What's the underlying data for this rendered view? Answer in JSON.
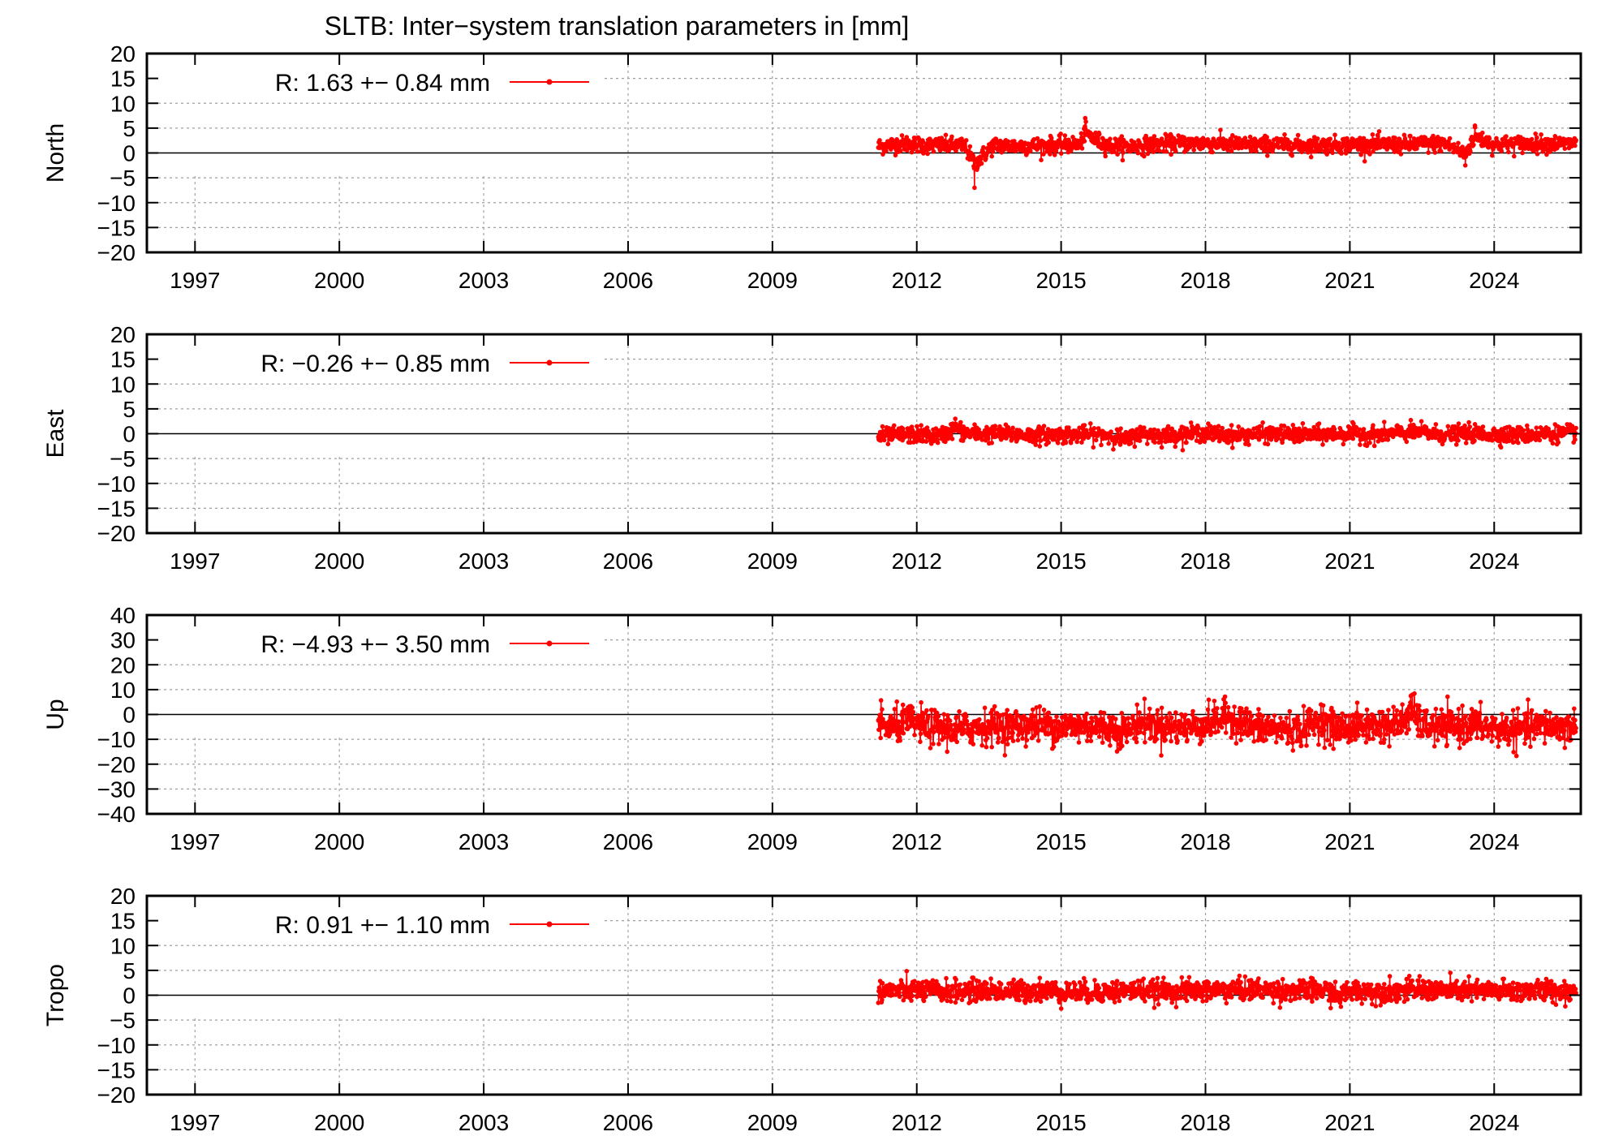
{
  "title": "SLTB: Inter−system translation parameters in [mm]",
  "colors": {
    "series": "#ff0000",
    "axis": "#000000",
    "grid": "#a0a0a0"
  },
  "chart_data": [
    {
      "type": "scatter",
      "ylabel": "North",
      "ylim": [
        -20,
        20
      ],
      "yticks": [
        "20",
        "15",
        "10",
        "5",
        "0",
        "−5",
        "−10",
        "−15",
        "−20"
      ],
      "ytick_values": [
        20,
        15,
        10,
        5,
        0,
        -5,
        -10,
        -15,
        -20
      ],
      "xlim": [
        1996,
        2025.8
      ],
      "xticks": [
        "1997",
        "2000",
        "2003",
        "2006",
        "2009",
        "2012",
        "2015",
        "2018",
        "2021",
        "2024"
      ],
      "xtick_values": [
        1997,
        2000,
        2003,
        2006,
        2009,
        2012,
        2015,
        2018,
        2021,
        2024
      ],
      "legend": {
        "label": "R:   1.63 +− 0.84 mm",
        "position": "top-left"
      },
      "series": [
        {
          "name": "R",
          "x_start": 2011.2,
          "x_end": 2025.7,
          "mean": 1.63,
          "sigma": 0.84,
          "x": [
            2011.2,
            2011.5,
            2011.8,
            2012.2,
            2012.6,
            2013.0,
            2013.2,
            2013.6,
            2014.0,
            2014.5,
            2015.0,
            2015.4,
            2015.5,
            2015.7,
            2016.0,
            2016.5,
            2017.0,
            2017.5,
            2018.0,
            2018.5,
            2019.0,
            2019.5,
            2020.0,
            2020.5,
            2021.0,
            2021.5,
            2022.0,
            2022.5,
            2023.0,
            2023.4,
            2023.6,
            2024.0,
            2024.5,
            2025.0,
            2025.5,
            2025.7
          ],
          "y": [
            1.0,
            1.8,
            2.2,
            1.5,
            1.4,
            1.2,
            -7.0,
            1.6,
            1.1,
            1.3,
            1.5,
            2.0,
            7.0,
            4.0,
            1.2,
            1.0,
            2.0,
            2.2,
            2.4,
            2.0,
            1.6,
            1.8,
            1.4,
            1.6,
            1.7,
            1.8,
            1.6,
            2.0,
            2.2,
            -2.5,
            5.5,
            1.8,
            2.0,
            2.2,
            2.0,
            2.4
          ]
        }
      ]
    },
    {
      "type": "scatter",
      "ylabel": "East",
      "ylim": [
        -20,
        20
      ],
      "yticks": [
        "20",
        "15",
        "10",
        "5",
        "0",
        "−5",
        "−10",
        "−15",
        "−20"
      ],
      "ytick_values": [
        20,
        15,
        10,
        5,
        0,
        -5,
        -10,
        -15,
        -20
      ],
      "xlim": [
        1996,
        2025.8
      ],
      "xticks": [
        "1997",
        "2000",
        "2003",
        "2006",
        "2009",
        "2012",
        "2015",
        "2018",
        "2021",
        "2024"
      ],
      "xtick_values": [
        1997,
        2000,
        2003,
        2006,
        2009,
        2012,
        2015,
        2018,
        2021,
        2024
      ],
      "legend": {
        "label": "R:  −0.26 +− 0.85 mm",
        "position": "top-left"
      },
      "series": [
        {
          "name": "R",
          "x_start": 2011.2,
          "x_end": 2025.7,
          "mean": -0.26,
          "sigma": 0.85,
          "x": [
            2011.2,
            2011.5,
            2012.0,
            2012.5,
            2012.8,
            2013.0,
            2013.5,
            2014.0,
            2014.5,
            2015.0,
            2015.5,
            2016.0,
            2016.4,
            2016.6,
            2017.0,
            2017.5,
            2018.0,
            2018.5,
            2019.0,
            2019.5,
            2020.0,
            2020.5,
            2021.0,
            2021.5,
            2022.0,
            2022.5,
            2023.0,
            2023.5,
            2024.0,
            2024.5,
            2025.0,
            2025.5,
            2025.7
          ],
          "y": [
            -1.0,
            -0.5,
            0.0,
            -0.8,
            3.0,
            0.5,
            0.2,
            0.0,
            -0.4,
            -0.2,
            0.0,
            -0.3,
            -2.5,
            0.5,
            -0.6,
            0.0,
            0.8,
            -0.5,
            0.0,
            0.2,
            -0.2,
            0.0,
            0.4,
            -0.3,
            0.6,
            1.0,
            -0.3,
            0.5,
            0.0,
            -0.3,
            0.3,
            0.5,
            1.0
          ]
        }
      ]
    },
    {
      "type": "scatter",
      "ylabel": "Up",
      "ylim": [
        -40,
        40
      ],
      "yticks": [
        "40",
        "30",
        "20",
        "10",
        "0",
        "−10",
        "−20",
        "−30",
        "−40"
      ],
      "ytick_values": [
        40,
        30,
        20,
        10,
        0,
        -10,
        -20,
        -30,
        -40
      ],
      "xlim": [
        1996,
        2025.8
      ],
      "xticks": [
        "1997",
        "2000",
        "2003",
        "2006",
        "2009",
        "2012",
        "2015",
        "2018",
        "2021",
        "2024"
      ],
      "xtick_values": [
        1997,
        2000,
        2003,
        2006,
        2009,
        2012,
        2015,
        2018,
        2021,
        2024
      ],
      "legend": {
        "label": "R:  −4.93 +− 3.50 mm",
        "position": "top-left"
      },
      "series": [
        {
          "name": "R",
          "x_start": 2011.2,
          "x_end": 2025.7,
          "mean": -4.93,
          "sigma": 3.5,
          "x": [
            2011.2,
            2011.5,
            2011.8,
            2012.2,
            2012.8,
            2013.5,
            2014.0,
            2014.5,
            2015.0,
            2015.5,
            2016.0,
            2016.4,
            2016.6,
            2017.0,
            2017.5,
            2018.0,
            2018.5,
            2019.0,
            2019.5,
            2020.0,
            2020.4,
            2020.7,
            2021.0,
            2021.5,
            2022.0,
            2022.3,
            2022.5,
            2023.0,
            2023.5,
            2024.0,
            2024.5,
            2025.0,
            2025.5,
            2025.7
          ],
          "y": [
            -3.0,
            -6.0,
            0.0,
            -5.0,
            -8.0,
            -4.0,
            -5.0,
            -3.0,
            -5.0,
            -4.0,
            -6.0,
            -9.0,
            -1.0,
            -4.0,
            -6.0,
            -3.0,
            4.0,
            -6.0,
            -7.0,
            -8.0,
            2.0,
            -7.0,
            -5.0,
            -4.0,
            -3.0,
            8.0,
            -4.0,
            -6.0,
            -3.0,
            -7.0,
            -8.0,
            -4.0,
            -6.0,
            -5.0
          ]
        }
      ]
    },
    {
      "type": "scatter",
      "ylabel": "Tropo",
      "ylim": [
        -20,
        20
      ],
      "yticks": [
        "20",
        "15",
        "10",
        "5",
        "0",
        "−5",
        "−10",
        "−15",
        "−20"
      ],
      "ytick_values": [
        20,
        15,
        10,
        5,
        0,
        -5,
        -10,
        -15,
        -20
      ],
      "xlim": [
        1996,
        2025.8
      ],
      "xticks": [
        "1997",
        "2000",
        "2003",
        "2006",
        "2009",
        "2012",
        "2015",
        "2018",
        "2021",
        "2024"
      ],
      "xtick_values": [
        1997,
        2000,
        2003,
        2006,
        2009,
        2012,
        2015,
        2018,
        2021,
        2024
      ],
      "legend": {
        "label": "R:   0.91 +− 1.10 mm",
        "position": "top-left"
      },
      "series": [
        {
          "name": "R",
          "x_start": 2011.2,
          "x_end": 2025.7,
          "mean": 0.91,
          "sigma": 1.1,
          "x": [
            2011.2,
            2011.5,
            2012.0,
            2012.5,
            2013.0,
            2013.5,
            2014.0,
            2014.5,
            2015.0,
            2015.5,
            2016.0,
            2016.4,
            2016.6,
            2017.0,
            2017.5,
            2018.0,
            2018.5,
            2019.0,
            2019.5,
            2020.0,
            2020.5,
            2020.8,
            2021.0,
            2021.5,
            2022.0,
            2022.5,
            2023.0,
            2023.5,
            2024.0,
            2024.5,
            2025.0,
            2025.5,
            2025.7
          ],
          "y": [
            1.0,
            0.8,
            1.0,
            0.6,
            0.8,
            1.0,
            0.5,
            1.2,
            0.4,
            0.2,
            0.6,
            0.8,
            1.2,
            0.6,
            0.8,
            1.0,
            1.2,
            1.4,
            1.0,
            0.8,
            1.2,
            -2.0,
            1.0,
            0.6,
            0.8,
            1.4,
            0.8,
            1.0,
            0.6,
            0.8,
            1.0,
            0.6,
            1.2
          ]
        }
      ]
    }
  ]
}
